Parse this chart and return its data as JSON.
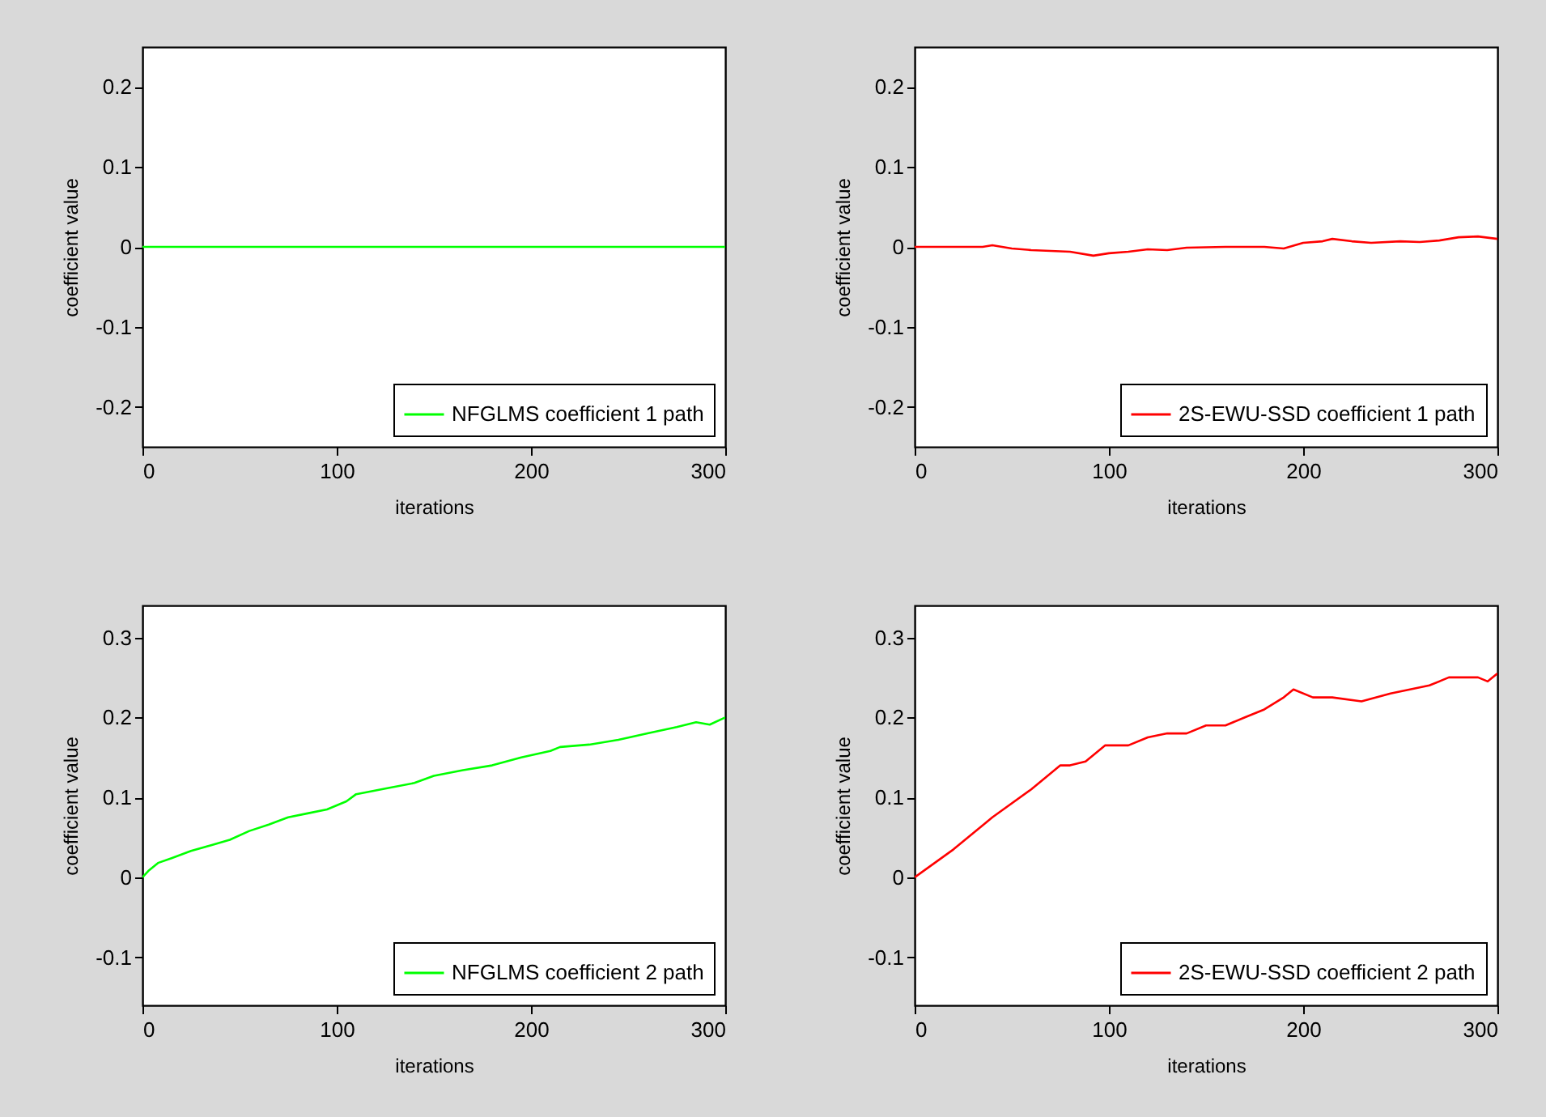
{
  "chart_data": [
    {
      "type": "line",
      "xlabel": "iterations",
      "ylabel": "coefficient value",
      "xlim": [
        0,
        300
      ],
      "xticks": [
        0,
        100,
        200,
        300
      ],
      "ylim": [
        -0.25,
        0.25
      ],
      "yticks": [
        -0.2,
        -0.1,
        0,
        0.1,
        0.2
      ],
      "legend": "bottom right",
      "series": [
        {
          "name": "NFGLMS coefficient 1 path",
          "color": "#00ff00",
          "x": [
            0,
            300
          ],
          "values": [
            0,
            0
          ]
        }
      ]
    },
    {
      "type": "line",
      "xlabel": "iterations",
      "ylabel": "coefficient value",
      "xlim": [
        0,
        300
      ],
      "xticks": [
        0,
        100,
        200,
        300
      ],
      "ylim": [
        -0.25,
        0.25
      ],
      "yticks": [
        -0.2,
        -0.1,
        0,
        0.1,
        0.2
      ],
      "legend": "bottom right",
      "series": [
        {
          "name": "2S-EWU-SSD coefficient 1 path",
          "color": "#ff0000",
          "x": [
            0,
            35,
            40,
            50,
            60,
            80,
            92,
            100,
            110,
            120,
            130,
            140,
            160,
            180,
            190,
            200,
            210,
            215,
            225,
            235,
            250,
            260,
            270,
            280,
            290,
            300
          ],
          "values": [
            0,
            0,
            0.002,
            -0.002,
            -0.004,
            -0.006,
            -0.011,
            -0.008,
            -0.006,
            -0.003,
            -0.004,
            -0.001,
            0,
            0,
            -0.002,
            0.005,
            0.007,
            0.01,
            0.007,
            0.005,
            0.007,
            0.006,
            0.008,
            0.012,
            0.013,
            0.01
          ]
        }
      ]
    },
    {
      "type": "line",
      "xlabel": "iterations",
      "ylabel": "coefficient value",
      "xlim": [
        0,
        300
      ],
      "xticks": [
        0,
        100,
        200,
        300
      ],
      "ylim": [
        -0.16,
        0.34
      ],
      "yticks": [
        -0.1,
        0,
        0.1,
        0.2,
        0.3
      ],
      "legend": "bottom right",
      "series": [
        {
          "name": "NFGLMS coefficient 2 path",
          "color": "#00ff00",
          "x": [
            0,
            3,
            8,
            15,
            25,
            35,
            45,
            55,
            65,
            75,
            85,
            95,
            105,
            110,
            125,
            140,
            150,
            165,
            180,
            195,
            210,
            215,
            230,
            245,
            260,
            275,
            285,
            292,
            300
          ],
          "values": [
            0,
            0.008,
            0.018,
            0.024,
            0.033,
            0.04,
            0.047,
            0.058,
            0.066,
            0.075,
            0.08,
            0.085,
            0.095,
            0.104,
            0.111,
            0.118,
            0.127,
            0.134,
            0.14,
            0.15,
            0.158,
            0.163,
            0.166,
            0.172,
            0.18,
            0.188,
            0.194,
            0.191,
            0.2
          ]
        }
      ]
    },
    {
      "type": "line",
      "xlabel": "iterations",
      "ylabel": "coefficient value",
      "xlim": [
        0,
        300
      ],
      "xticks": [
        0,
        100,
        200,
        300
      ],
      "ylim": [
        -0.16,
        0.34
      ],
      "yticks": [
        -0.1,
        0,
        0.1,
        0.2,
        0.3
      ],
      "legend": "bottom right",
      "series": [
        {
          "name": "2S-EWU-SSD coefficient 2 path",
          "color": "#ff0000",
          "x": [
            0,
            20,
            40,
            60,
            75,
            80,
            88,
            98,
            110,
            120,
            130,
            140,
            150,
            160,
            170,
            180,
            190,
            195,
            205,
            215,
            230,
            245,
            255,
            265,
            275,
            290,
            295,
            300
          ],
          "values": [
            0,
            0.035,
            0.075,
            0.11,
            0.14,
            0.14,
            0.145,
            0.165,
            0.165,
            0.175,
            0.18,
            0.18,
            0.19,
            0.19,
            0.2,
            0.21,
            0.225,
            0.235,
            0.225,
            0.225,
            0.22,
            0.23,
            0.235,
            0.24,
            0.25,
            0.25,
            0.245,
            0.255
          ]
        }
      ]
    }
  ]
}
